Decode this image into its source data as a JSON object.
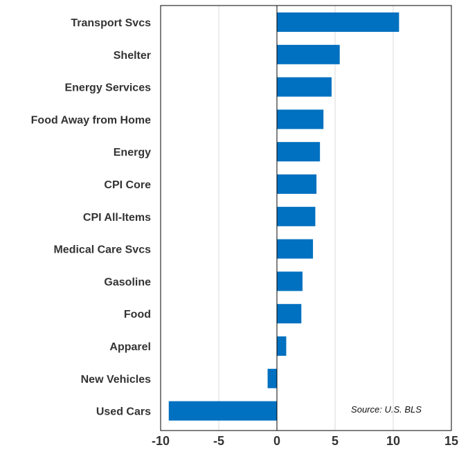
{
  "chart_data": {
    "type": "bar",
    "orientation": "horizontal",
    "categories": [
      "Transport Svcs",
      "Shelter",
      "Energy Services",
      "Food Away from Home",
      "Energy",
      "CPI Core",
      "CPI All-Items",
      "Medical Care Svcs",
      "Gasoline",
      "Food",
      "Apparel",
      "New Vehicles",
      "Used Cars"
    ],
    "values": [
      10.5,
      5.4,
      4.7,
      4.0,
      3.7,
      3.4,
      3.3,
      3.1,
      2.2,
      2.1,
      0.8,
      -0.8,
      -9.3
    ],
    "xlim": [
      -10,
      15
    ],
    "xticks": [
      "-10",
      "-5",
      "0",
      "5",
      "10",
      "15"
    ],
    "xtick_values": [
      -10,
      -5,
      0,
      5,
      10,
      15
    ],
    "grid": "vertical",
    "bar_color": "#0070c0",
    "source_note": "Source: U.S. BLS"
  }
}
